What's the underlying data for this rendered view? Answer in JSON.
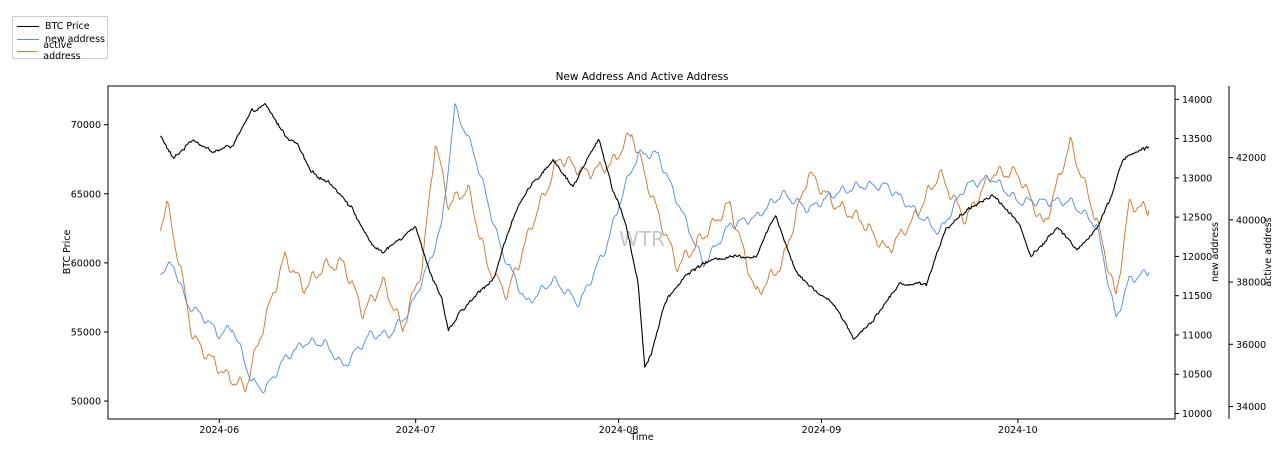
{
  "chart_data": {
    "type": "line",
    "title": "New Address And Active Address",
    "xlabel": "Time",
    "ylabel_left": "BTC Price",
    "ylabel_right_inner": "new address",
    "ylabel_right_outer": "active address",
    "watermark": "WTR",
    "x_range": [
      "2024-05-15",
      "2024-10-25"
    ],
    "x_ticks": [
      "2024-06",
      "2024-07",
      "2024-08",
      "2024-09",
      "2024-10"
    ],
    "axes": {
      "btc_price": {
        "range": [
          48700,
          72800
        ],
        "ticks": [
          50000,
          55000,
          60000,
          65000,
          70000
        ]
      },
      "new_address": {
        "range": [
          9930,
          14170
        ],
        "ticks": [
          10000,
          10500,
          11000,
          11500,
          12000,
          12500,
          13000,
          13500,
          14000
        ]
      },
      "active_address": {
        "range": [
          33600,
          44300
        ],
        "ticks": [
          34000,
          36000,
          38000,
          40000,
          42000
        ]
      }
    },
    "legend": [
      "BTC Price",
      "new address",
      "active address"
    ],
    "legend_position": "outside top-left",
    "grid": false,
    "series": [
      {
        "name": "BTC Price",
        "axis": "btc_price",
        "color": "#000000",
        "x": [
          "2024-05-23",
          "2024-05-25",
          "2024-05-28",
          "2024-05-31",
          "2024-06-03",
          "2024-06-06",
          "2024-06-08",
          "2024-06-11",
          "2024-06-13",
          "2024-06-15",
          "2024-06-18",
          "2024-06-21",
          "2024-06-24",
          "2024-06-26",
          "2024-06-28",
          "2024-07-01",
          "2024-07-03",
          "2024-07-05",
          "2024-07-06",
          "2024-07-08",
          "2024-07-10",
          "2024-07-13",
          "2024-07-16",
          "2024-07-19",
          "2024-07-22",
          "2024-07-25",
          "2024-07-29",
          "2024-07-31",
          "2024-08-02",
          "2024-08-04",
          "2024-08-05",
          "2024-08-06",
          "2024-08-08",
          "2024-08-11",
          "2024-08-14",
          "2024-08-18",
          "2024-08-22",
          "2024-08-25",
          "2024-08-28",
          "2024-08-31",
          "2024-09-03",
          "2024-09-06",
          "2024-09-09",
          "2024-09-13",
          "2024-09-17",
          "2024-09-20",
          "2024-09-24",
          "2024-09-27",
          "2024-10-01",
          "2024-10-03",
          "2024-10-07",
          "2024-10-10",
          "2024-10-13",
          "2024-10-15",
          "2024-10-17",
          "2024-10-20",
          "2024-10-21"
        ],
        "values": [
          69200,
          67500,
          69000,
          68000,
          68500,
          70900,
          71400,
          69300,
          68500,
          66500,
          65800,
          64200,
          61500,
          60700,
          61500,
          62800,
          59500,
          57500,
          55000,
          56500,
          57500,
          59000,
          63500,
          65800,
          67500,
          65500,
          69000,
          65500,
          63000,
          58500,
          52500,
          53500,
          57000,
          59000,
          60000,
          60500,
          60500,
          63500,
          59500,
          58000,
          57000,
          54500,
          56000,
          58500,
          58500,
          62500,
          64000,
          65000,
          63000,
          60500,
          62500,
          61000,
          62500,
          64500,
          67500,
          68200,
          68400
        ]
      },
      {
        "name": "new address",
        "axis": "new_address",
        "color": "#5b8fe0",
        "x": [
          "2024-05-23",
          "2024-05-25",
          "2024-05-27",
          "2024-05-30",
          "2024-06-01",
          "2024-06-03",
          "2024-06-06",
          "2024-06-08",
          "2024-06-11",
          "2024-06-14",
          "2024-06-17",
          "2024-06-20",
          "2024-06-24",
          "2024-06-27",
          "2024-06-30",
          "2024-07-03",
          "2024-07-05",
          "2024-07-07",
          "2024-07-10",
          "2024-07-14",
          "2024-07-18",
          "2024-07-22",
          "2024-07-26",
          "2024-07-30",
          "2024-08-02",
          "2024-08-04",
          "2024-08-07",
          "2024-08-10",
          "2024-08-14",
          "2024-08-18",
          "2024-08-22",
          "2024-08-26",
          "2024-08-30",
          "2024-09-03",
          "2024-09-07",
          "2024-09-11",
          "2024-09-15",
          "2024-09-19",
          "2024-09-23",
          "2024-09-27",
          "2024-10-01",
          "2024-10-05",
          "2024-10-09",
          "2024-10-13",
          "2024-10-16",
          "2024-10-18",
          "2024-10-21"
        ],
        "values": [
          11800,
          11900,
          11400,
          11200,
          11000,
          11100,
          10400,
          10300,
          10700,
          10900,
          10900,
          10600,
          11000,
          11000,
          11300,
          11900,
          12400,
          13900,
          13300,
          12100,
          11400,
          11700,
          11400,
          12100,
          12900,
          13300,
          13300,
          12700,
          11900,
          12400,
          12500,
          12800,
          12600,
          12800,
          12900,
          12900,
          12600,
          12300,
          12900,
          13000,
          12700,
          12700,
          12700,
          12400,
          11200,
          11700,
          11800
        ]
      },
      {
        "name": "active address",
        "axis": "active_address",
        "color": "#cf7a35",
        "x": [
          "2024-05-23",
          "2024-05-24",
          "2024-05-26",
          "2024-05-28",
          "2024-05-30",
          "2024-06-02",
          "2024-06-05",
          "2024-06-08",
          "2024-06-11",
          "2024-06-14",
          "2024-06-17",
          "2024-06-20",
          "2024-06-23",
          "2024-06-26",
          "2024-06-29",
          "2024-07-02",
          "2024-07-04",
          "2024-07-06",
          "2024-07-09",
          "2024-07-12",
          "2024-07-15",
          "2024-07-19",
          "2024-07-23",
          "2024-07-27",
          "2024-07-31",
          "2024-08-03",
          "2024-08-06",
          "2024-08-10",
          "2024-08-14",
          "2024-08-18",
          "2024-08-22",
          "2024-08-26",
          "2024-08-30",
          "2024-09-03",
          "2024-09-07",
          "2024-09-11",
          "2024-09-15",
          "2024-09-19",
          "2024-09-23",
          "2024-09-27",
          "2024-10-01",
          "2024-10-05",
          "2024-10-09",
          "2024-10-13",
          "2024-10-16",
          "2024-10-18",
          "2024-10-21"
        ],
        "values": [
          39800,
          40500,
          38500,
          36200,
          35700,
          35000,
          34600,
          36800,
          38800,
          37800,
          38500,
          38600,
          37000,
          38000,
          36500,
          38500,
          42500,
          40500,
          41000,
          38500,
          37600,
          40000,
          42000,
          41500,
          41800,
          42800,
          40800,
          38500,
          39500,
          40500,
          37600,
          38600,
          41500,
          40500,
          40000,
          39000,
          40000,
          41500,
          40000,
          41500,
          41500,
          39800,
          42500,
          40000,
          37500,
          40500,
          40300
        ]
      }
    ]
  }
}
